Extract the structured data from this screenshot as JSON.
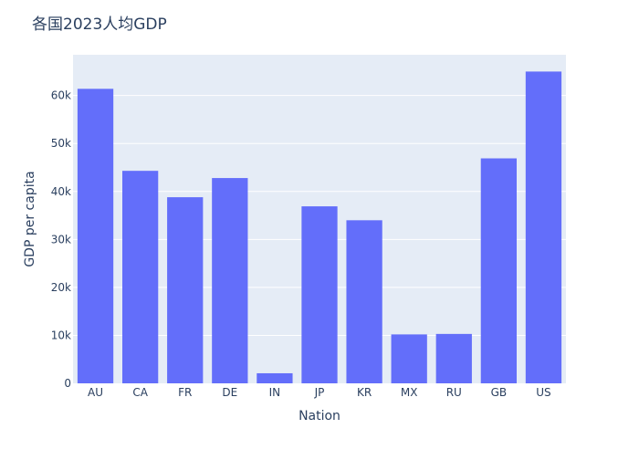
{
  "chart_data": {
    "type": "bar",
    "title": "各国2023人均GDP",
    "xlabel": "Nation",
    "ylabel": "GDP per capita",
    "categories": [
      "AU",
      "CA",
      "FR",
      "DE",
      "IN",
      "JP",
      "KR",
      "MX",
      "RU",
      "GB",
      "US"
    ],
    "values": [
      61400,
      44300,
      38800,
      42800,
      2100,
      36900,
      34000,
      10200,
      10300,
      46900,
      65000
    ],
    "ylim": [
      0,
      68500
    ],
    "yticks": [
      0,
      10000,
      20000,
      30000,
      40000,
      50000,
      60000
    ],
    "ytick_labels": [
      "0",
      "10k",
      "20k",
      "30k",
      "40k",
      "50k",
      "60k"
    ],
    "grid": true,
    "colors": {
      "bar": "#636efa",
      "plot_bg": "#e5ecf6",
      "grid": "#ffffff",
      "text": "#2a3f5f"
    }
  }
}
